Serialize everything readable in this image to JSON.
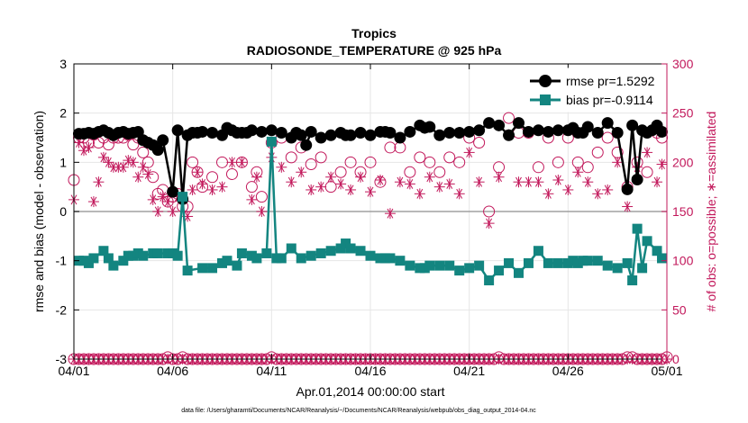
{
  "chart_data": {
    "type": "line",
    "title": "Tropics",
    "subtitle": "RADIOSONDE_TEMPERATURE @ 925 hPa",
    "xlabel": "Apr.01,2014 00:00:00 start",
    "ylabel": "rmse and bias (model - observation)",
    "y2label": "# of obs: o=possible; ∗=assimilated",
    "footnote": "data file: /Users/gharamti/Documents/NCAR/Reanalysis/~/Documents/NCAR/Reanalysis/webpub/obs_diag_output_2014-04.nc",
    "xlim": [
      0,
      30
    ],
    "ylim": [
      -3,
      3
    ],
    "y2lim": [
      0,
      300
    ],
    "x_ticks": [
      {
        "pos": 0,
        "label": "04/01"
      },
      {
        "pos": 5,
        "label": "04/06"
      },
      {
        "pos": 10,
        "label": "04/11"
      },
      {
        "pos": 15,
        "label": "04/16"
      },
      {
        "pos": 20,
        "label": "04/21"
      },
      {
        "pos": 25,
        "label": "04/26"
      },
      {
        "pos": 30,
        "label": "05/01"
      }
    ],
    "y_ticks": [
      {
        "value": -3,
        "label": "-3"
      },
      {
        "value": -2,
        "label": "-2"
      },
      {
        "value": -1,
        "label": "-1"
      },
      {
        "value": 0,
        "label": "0"
      },
      {
        "value": 1,
        "label": "1"
      },
      {
        "value": 2,
        "label": "2"
      },
      {
        "value": 3,
        "label": "3"
      }
    ],
    "y2_ticks": [
      {
        "value": 0,
        "label": "0"
      },
      {
        "value": 50,
        "label": "50"
      },
      {
        "value": 100,
        "label": "100"
      },
      {
        "value": 150,
        "label": "150"
      },
      {
        "value": 200,
        "label": "200"
      },
      {
        "value": 250,
        "label": "250"
      },
      {
        "value": 300,
        "label": "300"
      }
    ],
    "grid": true,
    "legend_position": "top-right",
    "colors": {
      "rmse": "#000000",
      "bias": "#138580",
      "obs": "#c2185b",
      "zero_line": "#a0a0a0"
    },
    "series": [
      {
        "name": "rmse pr=1.5292",
        "axis": "left",
        "marker": "filled-circle",
        "x": [
          0.25,
          0.5,
          0.75,
          1,
          1.25,
          1.5,
          1.75,
          2,
          2.25,
          2.5,
          2.75,
          3,
          3.25,
          3.5,
          3.75,
          4,
          4.25,
          4.5,
          5,
          5.25,
          5.5,
          5.75,
          6,
          6.25,
          6.5,
          7,
          7.5,
          7.75,
          8,
          8.25,
          8.5,
          8.75,
          9,
          9.5,
          10,
          10.5,
          11,
          11.25,
          11.5,
          11.75,
          12,
          12.5,
          13,
          13.5,
          13.75,
          14,
          14.5,
          15,
          15.5,
          15.75,
          16,
          16.5,
          17,
          17.5,
          17.75,
          18,
          18.5,
          19,
          19.5,
          20,
          20.5,
          21,
          21.5,
          22,
          22.5,
          23,
          23.5,
          24,
          24.5,
          25,
          25.25,
          25.5,
          25.75,
          26,
          26.5,
          27,
          27.5,
          28,
          28.25,
          28.5,
          28.75,
          29,
          29.25,
          29.5,
          29.75
        ],
        "values": [
          1.58,
          1.58,
          1.6,
          1.58,
          1.62,
          1.65,
          1.6,
          1.55,
          1.6,
          1.62,
          1.58,
          1.6,
          1.62,
          1.45,
          1.4,
          1.35,
          1.25,
          1.45,
          0.4,
          1.65,
          0.25,
          1.55,
          1.6,
          1.6,
          1.62,
          1.6,
          1.55,
          1.7,
          1.65,
          1.6,
          1.6,
          1.6,
          1.65,
          1.62,
          1.65,
          1.6,
          1.5,
          1.6,
          1.55,
          1.35,
          1.62,
          1.5,
          1.55,
          1.6,
          1.55,
          1.55,
          1.6,
          1.55,
          1.62,
          1.62,
          1.6,
          1.5,
          1.62,
          1.75,
          1.7,
          1.72,
          1.55,
          1.6,
          1.6,
          1.62,
          1.65,
          1.8,
          1.75,
          1.55,
          1.8,
          1.62,
          1.65,
          1.62,
          1.65,
          1.65,
          1.7,
          1.6,
          1.6,
          1.72,
          1.6,
          1.8,
          1.6,
          0.45,
          1.75,
          0.65,
          1.65,
          1.6,
          1.65,
          1.75,
          1.62
        ]
      },
      {
        "name": "bias pr=-0.9114",
        "axis": "left",
        "marker": "filled-square",
        "x": [
          0.25,
          0.5,
          0.75,
          1,
          1.5,
          1.75,
          2,
          2.5,
          2.75,
          3,
          3.25,
          3.5,
          4,
          4.25,
          4.75,
          5,
          5.25,
          5.5,
          5.75,
          6.5,
          7,
          7.5,
          7.75,
          8.25,
          8.5,
          9,
          9.25,
          9.75,
          10,
          10.25,
          10.5,
          11,
          11.5,
          12,
          12.5,
          13,
          13.5,
          13.75,
          14,
          14.5,
          15,
          15.5,
          15.75,
          16,
          16.5,
          17,
          17.5,
          17.75,
          18,
          18.5,
          19,
          19.5,
          20,
          20.5,
          21,
          21.5,
          22,
          22.5,
          23,
          23.5,
          24,
          24.5,
          25,
          25.25,
          25.5,
          25.75,
          26,
          26.5,
          27,
          27.5,
          28,
          28.25,
          28.5,
          28.75,
          29,
          29.5,
          29.75
        ],
        "values": [
          -1.0,
          -1.0,
          -1.05,
          -0.95,
          -0.8,
          -0.95,
          -1.1,
          -1.0,
          -0.9,
          -0.9,
          -0.85,
          -0.9,
          -0.85,
          -0.85,
          -0.85,
          -0.85,
          -0.9,
          0.3,
          -1.2,
          -1.15,
          -1.15,
          -1.05,
          -1.0,
          -1.1,
          -0.85,
          -0.9,
          -0.95,
          -0.85,
          1.42,
          -0.95,
          -0.95,
          -0.75,
          -0.95,
          -0.9,
          -0.85,
          -0.8,
          -0.75,
          -0.65,
          -0.75,
          -0.8,
          -0.9,
          -0.95,
          -0.95,
          -0.95,
          -1.0,
          -1.1,
          -1.15,
          -1.15,
          -1.1,
          -1.1,
          -1.1,
          -1.2,
          -1.15,
          -1.1,
          -1.4,
          -1.2,
          -1.05,
          -1.25,
          -1.05,
          -0.8,
          -1.05,
          -1.05,
          -1.05,
          -1.0,
          -1.05,
          -1.0,
          -1.0,
          -1.0,
          -1.1,
          -1.15,
          -1.05,
          -1.4,
          -0.35,
          -1.15,
          -0.6,
          -0.8,
          -0.95
        ]
      },
      {
        "name": "possible",
        "axis": "right",
        "marker": "open-circle",
        "x": [
          0,
          0.25,
          0.5,
          0.75,
          1,
          1.25,
          1.5,
          1.75,
          2,
          2.25,
          2.5,
          2.75,
          3,
          3.25,
          3.5,
          3.75,
          4,
          4.25,
          4.5,
          4.75,
          5,
          5.25,
          5.5,
          5.75,
          6,
          6.25,
          6.5,
          7,
          7.5,
          8,
          8.5,
          9,
          9.25,
          9.5,
          10,
          10.5,
          11,
          11.5,
          12,
          12.5,
          13,
          13.5,
          14,
          14.5,
          15,
          15.5,
          16,
          16.5,
          17,
          17.5,
          18,
          18.5,
          19,
          19.5,
          20,
          20.5,
          21,
          21.5,
          22,
          22.5,
          23,
          23.5,
          24,
          24.5,
          25,
          25.5,
          26,
          26.5,
          27,
          27.5,
          28,
          28.5,
          29,
          29.5,
          29.75
        ],
        "values": [
          182,
          225,
          225,
          220,
          228,
          220,
          225,
          218,
          225,
          225,
          225,
          228,
          218,
          225,
          210,
          200,
          185,
          168,
          172,
          160,
          165,
          168,
          155,
          155,
          200,
          190,
          175,
          185,
          200,
          188,
          200,
          175,
          190,
          165,
          220,
          225,
          205,
          215,
          198,
          205,
          175,
          190,
          200,
          190,
          200,
          180,
          215,
          215,
          190,
          205,
          200,
          190,
          205,
          200,
          225,
          220,
          150,
          195,
          245,
          230,
          230,
          195,
          225,
          200,
          225,
          200,
          195,
          210,
          225,
          210,
          175,
          200,
          190,
          230,
          225
        ]
      },
      {
        "name": "assimilated",
        "axis": "right",
        "marker": "asterisk",
        "x": [
          0,
          0.25,
          0.5,
          0.75,
          1,
          1.25,
          1.5,
          1.75,
          2,
          2.25,
          2.5,
          2.75,
          3,
          3.25,
          3.5,
          3.75,
          4,
          4.25,
          4.5,
          4.75,
          5,
          5.25,
          5.5,
          5.75,
          6,
          6.25,
          6.5,
          7,
          7.5,
          8,
          8.5,
          9,
          9.25,
          9.5,
          10,
          10.5,
          11,
          11.5,
          12,
          12.5,
          13,
          13.5,
          14,
          14.5,
          15,
          15.5,
          16,
          16.5,
          17,
          17.5,
          18,
          18.5,
          19,
          19.5,
          20,
          20.5,
          21,
          21.5,
          22,
          22.5,
          23,
          23.5,
          24,
          24.5,
          25,
          25.5,
          26,
          26.5,
          27,
          27.5,
          28,
          28.5,
          29,
          29.5,
          29.75
        ],
        "values": [
          162,
          220,
          212,
          215,
          160,
          180,
          205,
          200,
          195,
          195,
          195,
          202,
          200,
          185,
          195,
          188,
          162,
          150,
          165,
          160,
          150,
          165,
          162,
          145,
          172,
          190,
          178,
          172,
          175,
          200,
          200,
          162,
          185,
          150,
          205,
          195,
          180,
          190,
          172,
          175,
          185,
          178,
          172,
          185,
          170,
          182,
          148,
          180,
          178,
          168,
          185,
          175,
          178,
          168,
          210,
          180,
          138,
          185,
          228,
          180,
          180,
          180,
          168,
          182,
          172,
          190,
          180,
          168,
          172,
          200,
          155,
          195,
          210,
          180,
          198
        ]
      },
      {
        "name": "possible-zero",
        "axis": "right",
        "marker": "open-circle",
        "x": [
          0,
          0.25,
          0.5,
          0.75,
          1,
          1.25,
          1.5,
          1.75,
          2,
          2.25,
          2.5,
          2.75,
          3,
          3.25,
          3.5,
          3.75,
          4,
          4.25,
          4.5,
          4.75,
          5,
          5.25,
          5.5,
          5.75,
          6,
          6.25,
          6.5,
          6.75,
          7,
          7.25,
          7.5,
          7.75,
          8,
          8.25,
          8.5,
          8.75,
          9,
          9.25,
          9.5,
          9.75,
          10,
          10.25,
          10.5,
          10.75,
          11,
          11.25,
          11.5,
          11.75,
          12,
          12.25,
          12.5,
          12.75,
          13,
          13.25,
          13.5,
          13.75,
          14,
          14.25,
          14.5,
          14.75,
          15,
          15.25,
          15.5,
          15.75,
          16,
          16.25,
          16.5,
          16.75,
          17,
          17.25,
          17.5,
          17.75,
          18,
          18.25,
          18.5,
          18.75,
          19,
          19.25,
          19.5,
          19.75,
          20,
          20.25,
          20.5,
          20.75,
          21,
          21.25,
          21.5,
          21.75,
          22,
          22.25,
          22.5,
          22.75,
          23,
          23.25,
          23.5,
          23.75,
          24,
          24.25,
          24.5,
          24.75,
          25,
          25.25,
          25.5,
          25.75,
          26,
          26.25,
          26.5,
          26.75,
          27,
          27.25,
          27.5,
          27.75,
          28,
          28.25,
          28.5,
          28.75,
          29,
          29.25,
          29.5,
          29.75,
          30
        ],
        "values": [
          0,
          0,
          0,
          0,
          0,
          0,
          0,
          0,
          0,
          0,
          0,
          0,
          0,
          0,
          0,
          0,
          0,
          0,
          0,
          2,
          0,
          0,
          2,
          0,
          0,
          0,
          0,
          0,
          0,
          0,
          0,
          0,
          0,
          0,
          0,
          0,
          0,
          0,
          0,
          0,
          2,
          0,
          0,
          0,
          0,
          0,
          0,
          0,
          0,
          0,
          0,
          0,
          0,
          0,
          0,
          0,
          0,
          0,
          0,
          0,
          0,
          0,
          0,
          0,
          0,
          0,
          0,
          0,
          0,
          0,
          0,
          0,
          0,
          0,
          0,
          0,
          0,
          0,
          0,
          0,
          0,
          0,
          0,
          0,
          0,
          0,
          2,
          0,
          0,
          0,
          0,
          0,
          0,
          0,
          0,
          0,
          0,
          0,
          0,
          0,
          0,
          0,
          0,
          0,
          0,
          0,
          0,
          0,
          0,
          0,
          0,
          0,
          2,
          2,
          0,
          0,
          0,
          0,
          0,
          0,
          2
        ]
      },
      {
        "name": "assimilated-zero",
        "axis": "right",
        "marker": "asterisk",
        "x": [
          0,
          0.25,
          0.5,
          0.75,
          1,
          1.25,
          1.5,
          1.75,
          2,
          2.25,
          2.5,
          2.75,
          3,
          3.25,
          3.5,
          3.75,
          4,
          4.25,
          4.5,
          4.75,
          5,
          5.25,
          5.5,
          5.75,
          6,
          6.25,
          6.5,
          6.75,
          7,
          7.25,
          7.5,
          7.75,
          8,
          8.25,
          8.5,
          8.75,
          9,
          9.25,
          9.5,
          9.75,
          10,
          10.25,
          10.5,
          10.75,
          11,
          11.25,
          11.5,
          11.75,
          12,
          12.25,
          12.5,
          12.75,
          13,
          13.25,
          13.5,
          13.75,
          14,
          14.25,
          14.5,
          14.75,
          15,
          15.25,
          15.5,
          15.75,
          16,
          16.25,
          16.5,
          16.75,
          17,
          17.25,
          17.5,
          17.75,
          18,
          18.25,
          18.5,
          18.75,
          19,
          19.25,
          19.5,
          19.75,
          20,
          20.25,
          20.5,
          20.75,
          21,
          21.25,
          21.5,
          21.75,
          22,
          22.25,
          22.5,
          22.75,
          23,
          23.25,
          23.5,
          23.75,
          24,
          24.25,
          24.5,
          24.75,
          25,
          25.25,
          25.5,
          25.75,
          26,
          26.25,
          26.5,
          26.75,
          27,
          27.25,
          27.5,
          27.75,
          28,
          28.25,
          28.5,
          28.75,
          29,
          29.25,
          29.5,
          29.75,
          30
        ],
        "values": [
          0,
          0,
          0,
          0,
          0,
          0,
          0,
          0,
          0,
          0,
          0,
          0,
          0,
          0,
          0,
          0,
          0,
          0,
          0,
          0,
          0,
          0,
          0,
          0,
          0,
          0,
          0,
          0,
          0,
          0,
          0,
          0,
          0,
          0,
          0,
          0,
          0,
          0,
          0,
          0,
          0,
          0,
          0,
          0,
          0,
          0,
          0,
          0,
          0,
          0,
          0,
          0,
          0,
          0,
          0,
          0,
          0,
          0,
          0,
          0,
          0,
          0,
          0,
          0,
          0,
          0,
          0,
          0,
          0,
          0,
          0,
          0,
          0,
          0,
          0,
          0,
          0,
          0,
          0,
          0,
          0,
          0,
          0,
          0,
          0,
          0,
          0,
          0,
          0,
          0,
          0,
          0,
          0,
          0,
          0,
          0,
          0,
          0,
          0,
          0,
          0,
          0,
          0,
          0,
          0,
          0,
          0,
          0,
          0,
          0,
          0,
          0,
          0,
          0,
          0,
          0,
          0,
          0,
          0,
          0,
          0
        ]
      }
    ]
  }
}
